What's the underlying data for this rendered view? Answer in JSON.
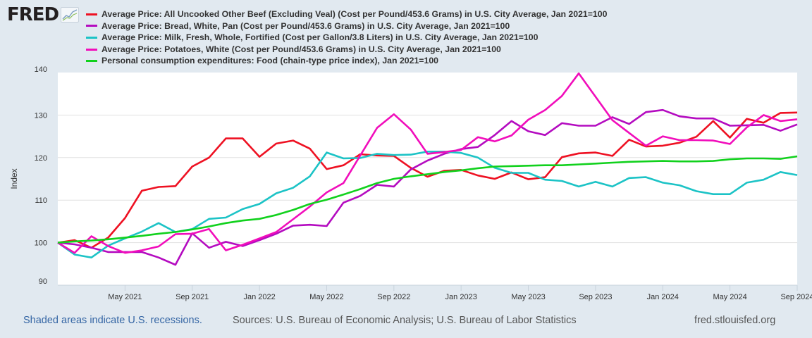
{
  "logo": {
    "text": "FRED"
  },
  "footer": {
    "recessions_note": "Shaded areas indicate U.S. recessions.",
    "sources": "Sources: U.S. Bureau of Economic Analysis; U.S. Bureau of Labor Statistics",
    "site": "fred.stlouisfed.org"
  },
  "colors": {
    "background": "#e1e9f0",
    "note_link": "#3465a4"
  },
  "chart_data": {
    "type": "line",
    "title": "",
    "xlabel": "",
    "ylabel": "Index",
    "ylim": [
      90,
      140
    ],
    "yticks": [
      "90",
      "100",
      "110",
      "120",
      "130",
      "140"
    ],
    "ytick_values": [
      90,
      100,
      110,
      120,
      130,
      140
    ],
    "x_start": "Jan 2021",
    "x_end": "Sep 2024",
    "frequency": "monthly",
    "xticks": [
      {
        "label": "May 2021",
        "month_index": 4
      },
      {
        "label": "Sep 2021",
        "month_index": 8
      },
      {
        "label": "Jan 2022",
        "month_index": 12
      },
      {
        "label": "May 2022",
        "month_index": 16
      },
      {
        "label": "Sep 2022",
        "month_index": 20
      },
      {
        "label": "Jan 2023",
        "month_index": 24
      },
      {
        "label": "May 2023",
        "month_index": 28
      },
      {
        "label": "Sep 2023",
        "month_index": 32
      },
      {
        "label": "Jan 2024",
        "month_index": 36
      },
      {
        "label": "May 2024",
        "month_index": 40
      },
      {
        "label": "Sep 2024",
        "month_index": 44
      }
    ],
    "grid": true,
    "legend_position": "top",
    "series": [
      {
        "name": "Average Price: All Uncooked Other Beef (Excluding Veal) (Cost per Pound/453.6 Grams) in U.S. City Average, Jan 2021=100",
        "color": "#ee1122",
        "values": [
          100,
          100.6,
          98.8,
          101.2,
          105.8,
          112.2,
          113.1,
          113.3,
          117.9,
          120,
          124.5,
          124.5,
          120.2,
          123.3,
          124,
          122.1,
          117.3,
          118.2,
          120.8,
          120.5,
          120.4,
          117.6,
          115.5,
          116.9,
          117.1,
          115.8,
          115,
          116.5,
          114.9,
          115.4,
          120.1,
          121,
          121.2,
          120.4,
          124.2,
          122.6,
          122.8,
          123.5,
          124.9,
          128.6,
          124.7,
          129.1,
          128.2,
          130.5,
          130.6
        ]
      },
      {
        "name": "Average Price: Bread, White, Pan (Cost per Pound/453.6 Grams) in U.S. City Average, Jan 2021=100",
        "color": "#b40bc0",
        "values": [
          100,
          99.6,
          98.8,
          97.8,
          97.8,
          97.8,
          96.5,
          94.8,
          102.2,
          98.8,
          100.2,
          99.2,
          100.6,
          102.1,
          104,
          104.2,
          103.9,
          109.4,
          111,
          113.6,
          113.2,
          117.2,
          119.3,
          120.9,
          122,
          122.5,
          125.3,
          128.6,
          126.2,
          125.3,
          128.1,
          127.5,
          127.5,
          129.5,
          127.9,
          130.7,
          131.2,
          129.7,
          129.2,
          129.2,
          127.5,
          127.6,
          127.7,
          126.3,
          127.8
        ]
      },
      {
        "name": "Average Price: Milk, Fresh, Whole, Fortified (Cost per Gallon/3.8 Liters) in U.S. City Average, Jan 2021=100",
        "color": "#1cc3c6",
        "values": [
          100,
          97.2,
          96.5,
          99.3,
          101,
          102.6,
          104.6,
          102.5,
          103.2,
          105.6,
          105.9,
          107.9,
          109.1,
          111.6,
          112.9,
          115.6,
          121.2,
          119.8,
          119.9,
          120.9,
          120.6,
          120.7,
          121.4,
          121.4,
          121.1,
          120,
          117.6,
          116.4,
          116.4,
          114.8,
          114.5,
          113.2,
          114.3,
          113.2,
          115.2,
          115.4,
          114.1,
          113.5,
          112.1,
          111.4,
          111.4,
          114.1,
          114.8,
          116.6,
          115.9
        ]
      },
      {
        "name": "Average Price: Potatoes, White (Cost per Pound/453.6 Grams) in U.S. City Average, Jan 2021=100",
        "color": "#f10dbb",
        "values": [
          100,
          97.6,
          101.5,
          99.2,
          97.6,
          98.2,
          99.1,
          102,
          102.1,
          103.2,
          98.2,
          99.5,
          101,
          102.5,
          105.5,
          108.5,
          111.8,
          114,
          120.5,
          127,
          130.2,
          126.6,
          120.9,
          121.3,
          121.8,
          124.8,
          123.8,
          125.2,
          128.9,
          131.2,
          134.5,
          139.8,
          134.3,
          128.8,
          125.8,
          122.8,
          125,
          124.1,
          124.1,
          124,
          123.2,
          127.1,
          130,
          128.6,
          129
        ]
      },
      {
        "name": "Personal consumption expenditures: Food (chain-type price index), Jan 2021=100",
        "color": "#11d11d",
        "values": [
          100,
          100.3,
          100.5,
          100.8,
          101.2,
          101.6,
          102.1,
          102.5,
          103.1,
          103.8,
          104.6,
          105.2,
          105.6,
          106.5,
          107.7,
          109.1,
          110.1,
          111.3,
          112.6,
          114,
          115,
          115.6,
          116.1,
          116.6,
          117,
          117.5,
          117.9,
          118,
          118.1,
          118.2,
          118.2,
          118.4,
          118.6,
          118.8,
          119,
          119.1,
          119.2,
          119.1,
          119.1,
          119.2,
          119.6,
          119.8,
          119.8,
          119.7,
          120.3
        ]
      }
    ]
  }
}
